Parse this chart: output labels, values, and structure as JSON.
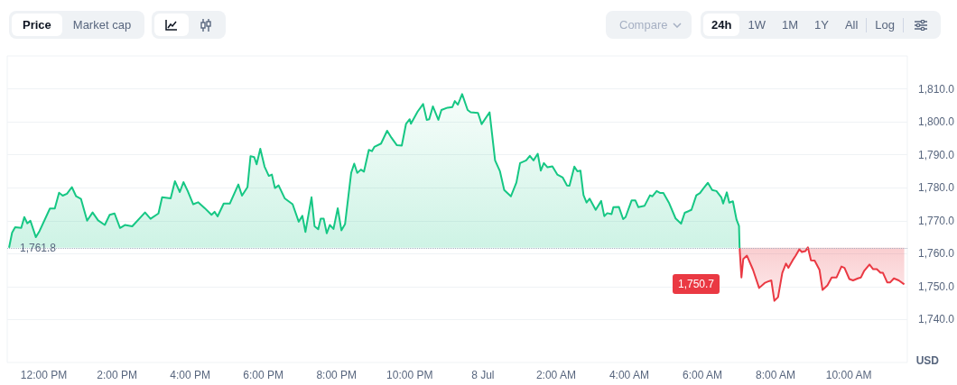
{
  "chart_data": {
    "type": "area",
    "ylabel": "USD",
    "annotations": [
      "Price",
      "Market cap",
      "Compare",
      "24h",
      "1W",
      "1M",
      "1Y",
      "All",
      "Log",
      "1,750.7"
    ],
    "xlim": [
      "--07-07T11:00",
      "--07-08T11:36"
    ],
    "xticks": [
      {
        "value": "--07-07T12:00",
        "label": "12:00 PM"
      },
      {
        "value": "--07-07T14:00",
        "label": "2:00 PM"
      },
      {
        "value": "--07-07T16:00",
        "label": "4:00 PM"
      },
      {
        "value": "--07-07T18:00",
        "label": "6:00 PM"
      },
      {
        "value": "--07-07T20:00",
        "label": "8:00 PM"
      },
      {
        "value": "--07-07T22:00",
        "label": "10:00 PM"
      },
      {
        "value": "--07-08T00:00",
        "label": "8 Jul"
      },
      {
        "value": "--07-08T02:00",
        "label": "2:00 AM"
      },
      {
        "value": "--07-08T04:00",
        "label": "4:00 AM"
      },
      {
        "value": "--07-08T06:00",
        "label": "6:00 AM"
      },
      {
        "value": "--07-08T08:00",
        "label": "8:00 AM"
      },
      {
        "value": "--07-08T10:00",
        "label": "10:00 AM"
      }
    ],
    "ylim": [
      1727,
      1820
    ],
    "yticks": [
      {
        "value": 1740,
        "label": "1,740.0"
      },
      {
        "value": 1750,
        "label": "1,750.0"
      },
      {
        "value": 1760,
        "label": "1,760.0"
      },
      {
        "value": 1770,
        "label": "1,770.0"
      },
      {
        "value": 1780,
        "label": "1,780.0"
      },
      {
        "value": 1790,
        "label": "1,790.0"
      },
      {
        "value": 1800,
        "label": "1,800.0"
      },
      {
        "value": 1810,
        "label": "1,810.0"
      }
    ],
    "grid": "y",
    "marker": "none",
    "line_style": "solid",
    "ref_lines": [
      {
        "axis": "y",
        "value": 1761.8,
        "label": "1,761.8",
        "line_style": "dotted",
        "color": "#a7b1c2"
      }
    ],
    "series": [
      {
        "color": "#16c784",
        "x": [
          "--07-07T11:03",
          "--07-07T11:08",
          "--07-07T11:13",
          "--07-07T11:23",
          "--07-07T11:28",
          "--07-07T11:33",
          "--07-07T11:38",
          "--07-07T11:47",
          "--07-07T11:53",
          "--07-07T12:10",
          "--07-07T12:18",
          "--07-07T12:25",
          "--07-07T12:31",
          "--07-07T12:38",
          "--07-07T12:46",
          "--07-07T12:53",
          "--07-07T13:01",
          "--07-07T13:11",
          "--07-07T13:20",
          "--07-07T13:29",
          "--07-07T13:40",
          "--07-07T13:48",
          "--07-07T13:56",
          "--07-07T14:05",
          "--07-07T14:13",
          "--07-07T14:25",
          "--07-07T14:46",
          "--07-07T14:55",
          "--07-07T15:08",
          "--07-07T15:14",
          "--07-07T15:28",
          "--07-07T15:35",
          "--07-07T15:43",
          "--07-07T15:49",
          "--07-07T15:56",
          "--07-07T16:05",
          "--07-07T16:13",
          "--07-07T16:24",
          "--07-07T16:35",
          "--07-07T16:40",
          "--07-07T16:45",
          "--07-07T16:55",
          "--07-07T17:05",
          "--07-07T17:19",
          "--07-07T17:25",
          "--07-07T17:34",
          "--07-07T17:39",
          "--07-07T17:45",
          "--07-07T17:49",
          "--07-07T17:55",
          "--07-07T18:02",
          "--07-07T18:09",
          "--07-07T18:14",
          "--07-07T18:19",
          "--07-07T18:25",
          "--07-07T18:35",
          "--07-07T18:48",
          "--07-07T18:58",
          "--07-07T19:04",
          "--07-07T19:09",
          "--07-07T19:19",
          "--07-07T19:24",
          "--07-07T19:30",
          "--07-07T19:34",
          "--07-07T19:39",
          "--07-07T19:44",
          "--07-07T19:49",
          "--07-07T19:55",
          "--07-07T20:02",
          "--07-07T20:08",
          "--07-07T20:14",
          "--07-07T20:24",
          "--07-07T20:29",
          "--07-07T20:34",
          "--07-07T20:40",
          "--07-07T20:45",
          "--07-07T20:53",
          "--07-07T20:58",
          "--07-07T21:02",
          "--07-07T21:13",
          "--07-07T21:23",
          "--07-07T21:30",
          "--07-07T21:39",
          "--07-07T21:47",
          "--07-07T21:54",
          "--07-07T22:00",
          "--07-07T22:02",
          "--07-07T22:13",
          "--07-07T22:22",
          "--07-07T22:28",
          "--07-07T22:32",
          "--07-07T22:38",
          "--07-07T22:47",
          "--07-07T22:52",
          "--07-07T23:02",
          "--07-07T23:10",
          "--07-07T23:14",
          "--07-07T23:19",
          "--07-07T23:26",
          "--07-07T23:35",
          "--07-07T23:40",
          "--07-07T23:52",
          "--07-07T23:58",
          "--07-08T00:11",
          "--07-08T00:20",
          "--07-08T00:28",
          "--07-08T00:35",
          "--07-08T00:46",
          "--07-08T00:55",
          "--07-08T01:01",
          "--07-08T01:11",
          "--07-08T01:17",
          "--07-08T01:23",
          "--07-08T01:30",
          "--07-08T01:35",
          "--07-08T01:40",
          "--07-08T01:46",
          "--07-08T01:54",
          "--07-08T02:02",
          "--07-08T02:11",
          "--07-08T02:18",
          "--07-08T02:22",
          "--07-08T02:30",
          "--07-08T02:35",
          "--07-08T02:40",
          "--07-08T02:45",
          "--07-08T02:50",
          "--07-08T02:55",
          "--07-08T03:05",
          "--07-08T03:14",
          "--07-08T03:19",
          "--07-08T03:24",
          "--07-08T03:31",
          "--07-08T03:34",
          "--07-08T03:43",
          "--07-08T03:50",
          "--07-08T03:54",
          "--07-08T04:04",
          "--07-08T04:10",
          "--07-08T04:15",
          "--07-08T04:25",
          "--07-08T04:34",
          "--07-08T04:38",
          "--07-08T04:45",
          "--07-08T04:51",
          "--07-08T04:56",
          "--07-08T05:05",
          "--07-08T05:16",
          "--07-08T05:25",
          "--07-08T05:31",
          "--07-08T05:42",
          "--07-08T05:50",
          "--07-08T05:56",
          "--07-08T06:02",
          "--07-08T06:09",
          "--07-08T06:16",
          "--07-08T06:23",
          "--07-08T06:31",
          "--07-08T06:34",
          "--07-08T06:40",
          "--07-08T06:44",
          "--07-08T06:50",
          "--07-08T06:56",
          "--07-08T07:00",
          "--07-08T07:01"
        ],
        "values": [
          1761.8,
          1766.4,
          1768,
          1767.8,
          1771.1,
          1769.2,
          1770,
          1765,
          1766.9,
          1773.7,
          1773.7,
          1778.5,
          1777.6,
          1778.2,
          1780.2,
          1777.4,
          1776.6,
          1770,
          1772.5,
          1770.1,
          1768.7,
          1771.8,
          1772.2,
          1767.8,
          1768.7,
          1768.3,
          1772.5,
          1770.6,
          1772.2,
          1777.1,
          1776.8,
          1782,
          1778.7,
          1781.7,
          1779,
          1775,
          1775.6,
          1773.8,
          1771.8,
          1772.7,
          1771.3,
          1775.2,
          1775.2,
          1781,
          1777.6,
          1780.2,
          1789.6,
          1789.3,
          1787.1,
          1791.8,
          1786.4,
          1783.6,
          1784,
          1779.9,
          1780.7,
          1776.8,
          1775,
          1769.7,
          1771.5,
          1766.6,
          1777.1,
          1768.3,
          1767.4,
          1770.6,
          1770.6,
          1766.2,
          1768.7,
          1767.5,
          1773.8,
          1767.1,
          1769,
          1784.5,
          1787.3,
          1784.5,
          1785.5,
          1784.9,
          1791.5,
          1791.1,
          1792.4,
          1793.4,
          1797.3,
          1795.2,
          1792.9,
          1792.8,
          1799.4,
          1800.8,
          1799.4,
          1803.1,
          1805.4,
          1800.6,
          1800.8,
          1804.7,
          1800.6,
          1803.6,
          1804.3,
          1804.5,
          1806.3,
          1805.2,
          1808.4,
          1803.6,
          1802.9,
          1802.7,
          1799.3,
          1802.9,
          1788.3,
          1785,
          1779.3,
          1777.4,
          1781.6,
          1787.5,
          1788.3,
          1789.7,
          1788.3,
          1790.3,
          1785.2,
          1787.5,
          1786.2,
          1786.5,
          1784,
          1783.1,
          1780.7,
          1780.6,
          1786.4,
          1785,
          1785.2,
          1777.8,
          1775.5,
          1776.7,
          1773.3,
          1776,
          1771.4,
          1772.3,
          1772,
          1774.1,
          1774.2,
          1770.5,
          1771.1,
          1776.2,
          1776.2,
          1774.1,
          1774.5,
          1777.7,
          1777.4,
          1779,
          1778.4,
          1778.4,
          1775.5,
          1770.7,
          1769.1,
          1772.4,
          1773.3,
          1777.7,
          1778.4,
          1779.9,
          1781.5,
          1779.3,
          1779,
          1777.1,
          1775.2,
          1778.6,
          1775.5,
          1775.9,
          1770.3,
          1768.4,
          1761.7
        ]
      },
      {
        "type": "line",
        "color": "#ea3943",
        "upper": [
          1761.8,
          1761.8,
          1761.8,
          1761.8,
          1761.8,
          1761.8,
          1761.8,
          1761.8,
          1761.8,
          1761.8,
          1761.8,
          1761.8,
          1761.8,
          1761.8,
          1761.8,
          1761.8,
          1761.8,
          1761.8,
          1761.8,
          1761.8,
          1761.8,
          1761.8,
          1761.8,
          1761.8,
          1761.8,
          1761.8,
          1761.8,
          1761.8,
          1761.8,
          1761.8,
          1761.8,
          1761.8,
          1761.8,
          1761.8,
          1761.8,
          1761.8,
          1761.8,
          1761.8,
          1761.8,
          1761.8,
          1761.8,
          1761.8,
          1761.8,
          1761.8
        ],
        "lower": [
          1761.7,
          1752.8,
          1758.4,
          1759.4,
          1755.1,
          1749.6,
          1751.1,
          1751.5,
          1751.9,
          1745.7,
          1746.8,
          1754.2,
          1757,
          1755.7,
          1758,
          1759.4,
          1761.3,
          1760.5,
          1760.8,
          1761.8,
          1758,
          1757.9,
          1755.1,
          1749,
          1750.4,
          1752.8,
          1752.8,
          1756.1,
          1755.7,
          1752.3,
          1751.9,
          1752.5,
          1752.8,
          1754.7,
          1756.7,
          1755.3,
          1755.3,
          1754.2,
          1754.2,
          1751.3,
          1751.3,
          1752.5,
          1751.9,
          1750.7
        ],
        "x": [
          "--07-08T07:01",
          "--07-08T07:04",
          "--07-08T07:07",
          "--07-08T07:13",
          "--07-08T07:23",
          "--07-08T07:33",
          "--07-08T07:42",
          "--07-08T07:47",
          "--07-08T07:53",
          "--07-08T07:58",
          "--07-08T08:04",
          "--07-08T08:11",
          "--07-08T08:17",
          "--07-08T08:21",
          "--07-08T08:28",
          "--07-08T08:33",
          "--07-08T08:39",
          "--07-08T08:43",
          "--07-08T08:49",
          "--07-08T08:53",
          "--07-08T08:58",
          "--07-08T09:04",
          "--07-08T09:12",
          "--07-08T09:17",
          "--07-08T09:25",
          "--07-08T09:32",
          "--07-08T09:40",
          "--07-08T09:48",
          "--07-08T09:53",
          "--07-08T10:01",
          "--07-08T10:07",
          "--07-08T10:15",
          "--07-08T10:20",
          "--07-08T10:25",
          "--07-08T10:34",
          "--07-08T10:40",
          "--07-08T10:46",
          "--07-08T10:52",
          "--07-08T10:56",
          "--07-08T11:03",
          "--07-08T11:08",
          "--07-08T11:14",
          "--07-08T11:22",
          "--07-08T11:31"
        ],
        "values": [
          1761.7,
          1752.8,
          1758.4,
          1759.4,
          1755.1,
          1749.6,
          1751.1,
          1751.5,
          1751.9,
          1745.7,
          1746.8,
          1754.2,
          1757,
          1755.7,
          1758,
          1759.4,
          1761.3,
          1760.5,
          1760.8,
          1761.9,
          1758,
          1757.9,
          1755.1,
          1749,
          1750.4,
          1752.8,
          1752.8,
          1756.1,
          1755.7,
          1752.3,
          1751.9,
          1752.5,
          1752.8,
          1754.7,
          1756.7,
          1755.3,
          1755.3,
          1754.2,
          1754.2,
          1751.3,
          1751.3,
          1752.5,
          1751.9,
          1750.7
        ]
      }
    ]
  }
}
